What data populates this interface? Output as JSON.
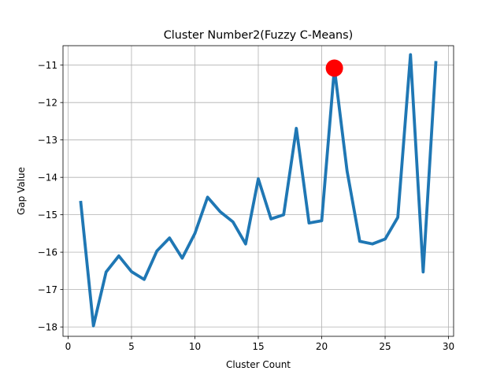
{
  "chart_data": {
    "type": "line",
    "title": "Cluster Number2(Fuzzy C-Means)",
    "xlabel": "Cluster Count",
    "ylabel": "Gap Value",
    "xlim": [
      -0.4,
      30.4
    ],
    "ylim": [
      -18.25,
      -10.48
    ],
    "xticks": [
      0,
      5,
      10,
      15,
      20,
      25,
      30
    ],
    "xtick_labels": [
      "0",
      "5",
      "10",
      "15",
      "20",
      "25",
      "30"
    ],
    "yticks": [
      -18,
      -17,
      -16,
      -15,
      -14,
      -13,
      -12,
      -11
    ],
    "ytick_labels": [
      "−18",
      "−17",
      "−16",
      "−15",
      "−14",
      "−13",
      "−12",
      "−11"
    ],
    "grid": true,
    "series": [
      {
        "x": [
          1,
          2,
          3,
          4,
          5,
          6,
          7,
          8,
          9,
          10,
          11,
          12,
          13,
          14,
          15,
          16,
          17,
          18,
          19,
          20,
          21,
          22,
          23,
          24,
          25,
          26,
          27,
          28,
          29
        ],
        "values": [
          -14.67,
          -17.97,
          -16.53,
          -16.1,
          -16.52,
          -16.73,
          -15.97,
          -15.62,
          -16.16,
          -15.5,
          -14.53,
          -14.92,
          -15.19,
          -15.78,
          -14.04,
          -15.11,
          -15.0,
          -12.69,
          -15.22,
          -15.16,
          -11.08,
          -13.83,
          -15.71,
          -15.78,
          -15.65,
          -15.07,
          -10.72,
          -16.53,
          -10.93
        ],
        "color": "#1f77b4"
      }
    ],
    "highlight": {
      "x": 21,
      "y": -11.08,
      "color": "#ff0000"
    },
    "colors": {
      "line": "#1f77b4",
      "highlight": "#ff0000",
      "grid": "#b0b0b0",
      "axes": "#000000"
    }
  }
}
